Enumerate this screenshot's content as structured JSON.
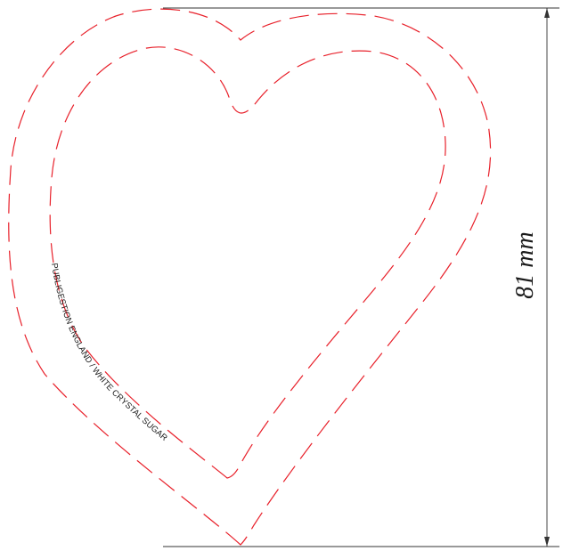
{
  "colors": {
    "cut_line": "#e8202a",
    "dimension_line": "#333333",
    "text": "#1a1a1a"
  },
  "dimension": {
    "label": "81 mm"
  },
  "curved_text": "PUBLIGESTION ENGLAND / WHITE CRYSTAL SUGAR",
  "shapes": {
    "outer_heart": "dashed outline",
    "inner_heart": "dashed outline"
  }
}
